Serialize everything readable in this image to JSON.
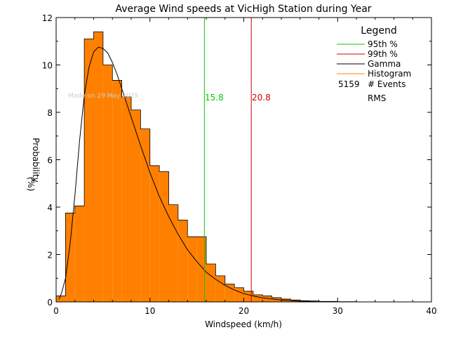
{
  "chart_data": {
    "type": "bar",
    "title": "Average Wind speeds at VicHigh Station during Year",
    "xlabel": "Windspeed (km/h)",
    "ylabel_line1": "Probability",
    "ylabel_line2": "(%)",
    "xlim": [
      0,
      40
    ],
    "ylim": [
      0,
      12
    ],
    "x_ticks": [
      0,
      10,
      20,
      30,
      40
    ],
    "y_ticks": [
      0,
      2,
      4,
      6,
      8,
      10,
      12
    ],
    "bin_width": 1,
    "histogram": {
      "name": "Histogram",
      "bin_starts": [
        0,
        1,
        2,
        3,
        4,
        5,
        6,
        7,
        8,
        9,
        10,
        11,
        12,
        13,
        14,
        15,
        16,
        17,
        18,
        19,
        20,
        21,
        22,
        23,
        24,
        25,
        26,
        27,
        28,
        29,
        30,
        31,
        32
      ],
      "values": [
        0.25,
        3.75,
        4.05,
        11.1,
        11.4,
        10.0,
        9.35,
        8.65,
        8.1,
        7.3,
        5.75,
        5.5,
        4.1,
        3.45,
        2.75,
        2.75,
        1.6,
        1.1,
        0.75,
        0.6,
        0.45,
        0.3,
        0.25,
        0.18,
        0.12,
        0.08,
        0.05,
        0.04,
        0.02,
        0.02,
        0.01,
        0.01,
        0.0
      ],
      "color": "#ff8000"
    },
    "gamma_fit": {
      "name": "Gamma",
      "x": [
        0.3,
        0.6,
        1,
        1.5,
        2,
        2.5,
        3,
        3.5,
        4,
        4.5,
        5,
        5.5,
        6,
        6.5,
        7,
        8,
        9,
        10,
        11,
        12,
        13,
        14,
        15,
        16,
        17,
        18,
        19,
        20,
        21,
        22,
        24,
        26,
        28,
        30,
        32
      ],
      "y": [
        0.1,
        0.4,
        1.0,
        2.5,
        4.5,
        6.8,
        8.7,
        9.9,
        10.55,
        10.75,
        10.7,
        10.5,
        10.1,
        9.6,
        9.0,
        7.8,
        6.6,
        5.45,
        4.45,
        3.6,
        2.85,
        2.2,
        1.7,
        1.25,
        0.95,
        0.7,
        0.5,
        0.35,
        0.25,
        0.17,
        0.08,
        0.03,
        0.01,
        0.0,
        0.0
      ],
      "color": "#000000"
    },
    "percentile_95": {
      "name": "95th %",
      "x": 15.8,
      "label": "15.8",
      "color": "#00cc00"
    },
    "percentile_99": {
      "name": "99th %",
      "x": 20.8,
      "label": "20.8",
      "color": "#cc0000"
    },
    "legend": {
      "title": "Legend",
      "position": "top-right",
      "entries": [
        {
          "label": "95th %",
          "color": "#00cc00"
        },
        {
          "label": "99th %",
          "color": "#cc0000"
        },
        {
          "label": "Gamma",
          "color": "#000000"
        },
        {
          "label": "Histogram",
          "color": "#ff8000"
        }
      ],
      "events_count": "5159",
      "events_label": "# Events",
      "rms_label": "RMS"
    },
    "watermark": "Made on 29 May 2025"
  }
}
